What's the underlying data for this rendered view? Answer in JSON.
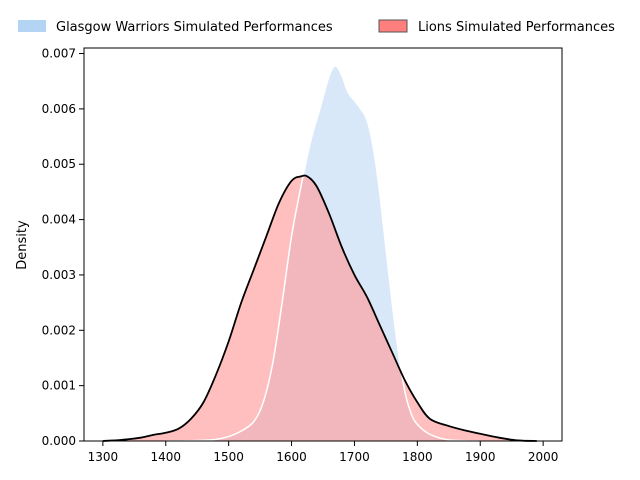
{
  "chart_data": {
    "type": "area",
    "title": "",
    "xlabel": "",
    "ylabel": "Density",
    "xlim": [
      1270,
      2030
    ],
    "ylim": [
      0,
      0.0071
    ],
    "xticks": [
      1300,
      1400,
      1500,
      1600,
      1700,
      1800,
      1900,
      2000
    ],
    "xtick_labels": [
      "1300",
      "1400",
      "1500",
      "1600",
      "1700",
      "1800",
      "1900",
      "2000"
    ],
    "yticks": [
      0,
      0.001,
      0.002,
      0.003,
      0.004,
      0.005,
      0.006,
      0.007
    ],
    "ytick_labels": [
      "0.000",
      "0.001",
      "0.002",
      "0.003",
      "0.004",
      "0.005",
      "0.006",
      "0.007"
    ],
    "grid": false,
    "legend_position": "top",
    "series": [
      {
        "name": "Glasgow Warriors Simulated Performances",
        "fill_color": "#c9def5",
        "edge_color": "#ffffff",
        "x": [
          1400,
          1450,
          1480,
          1500,
          1520,
          1540,
          1555,
          1570,
          1585,
          1600,
          1615,
          1630,
          1645,
          1660,
          1670,
          1680,
          1690,
          1700,
          1710,
          1720,
          1730,
          1740,
          1750,
          1760,
          1770,
          1780,
          1790,
          1800,
          1820,
          1850,
          1900
        ],
        "y": [
          0,
          1e-05,
          3e-05,
          8e-05,
          0.00018,
          0.00035,
          0.0007,
          0.0014,
          0.0025,
          0.0037,
          0.0046,
          0.0054,
          0.006,
          0.0066,
          0.00678,
          0.0066,
          0.0063,
          0.00615,
          0.006,
          0.0058,
          0.0053,
          0.0045,
          0.0035,
          0.0025,
          0.0016,
          0.0009,
          0.0005,
          0.0003,
          0.00012,
          2e-05,
          0
        ]
      },
      {
        "name": "Lions Simulated Performances",
        "fill_color": "#ff9c9c",
        "edge_color": "#000000",
        "x": [
          1300,
          1330,
          1360,
          1380,
          1400,
          1420,
          1440,
          1460,
          1480,
          1500,
          1520,
          1540,
          1560,
          1580,
          1600,
          1615,
          1625,
          1640,
          1660,
          1680,
          1700,
          1720,
          1740,
          1760,
          1780,
          1800,
          1820,
          1850,
          1880,
          1900,
          1930,
          1960,
          1990
        ],
        "y": [
          0,
          2e-05,
          6e-05,
          0.00011,
          0.00015,
          0.00022,
          0.0004,
          0.0007,
          0.0012,
          0.0018,
          0.0025,
          0.0031,
          0.0037,
          0.0043,
          0.0047,
          0.00478,
          0.00478,
          0.0046,
          0.0041,
          0.0035,
          0.003,
          0.0026,
          0.0021,
          0.0016,
          0.0011,
          0.0007,
          0.0004,
          0.00027,
          0.00018,
          0.00013,
          6e-05,
          1e-05,
          0
        ]
      }
    ]
  }
}
